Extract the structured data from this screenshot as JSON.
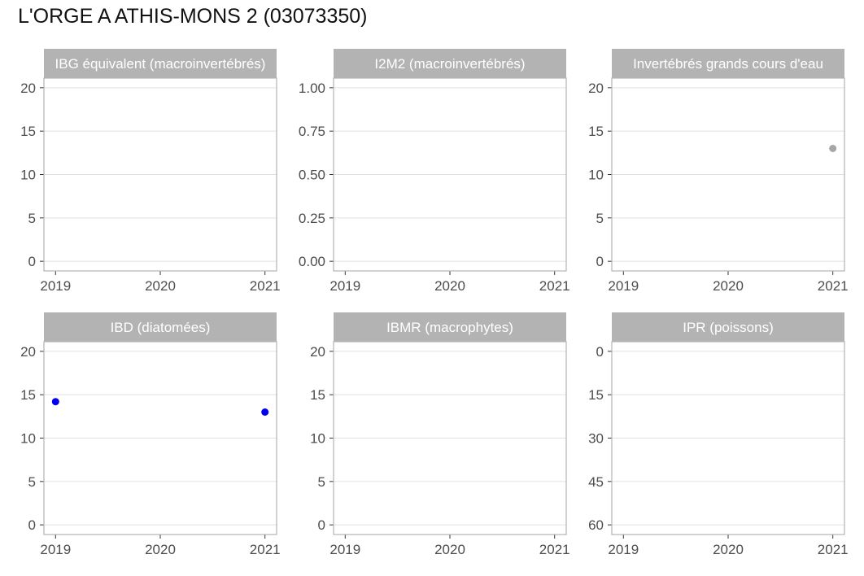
{
  "title": "L'ORGE A ATHIS-MONS 2 (03073350)",
  "colors": {
    "strip_bg": "#b3b3b3",
    "panel_border": "#b3b3b3",
    "gridline": "#e0e0e0",
    "point_blue": "#0000ee",
    "point_grey": "#a6a6a6"
  },
  "chart_data": [
    {
      "type": "scatter",
      "title": "IBG équivalent (macroinvertébrés)",
      "x_ticks": [
        2019,
        2020,
        2021
      ],
      "xlim": [
        2019,
        2021
      ],
      "y_ticks": [
        0,
        5,
        10,
        15,
        20
      ],
      "y_tick_labels": [
        "0",
        "5",
        "10",
        "15",
        "20"
      ],
      "ylim": [
        0,
        20
      ],
      "reversed": false,
      "points": []
    },
    {
      "type": "scatter",
      "title": "I2M2 (macroinvertébrés)",
      "x_ticks": [
        2019,
        2020,
        2021
      ],
      "xlim": [
        2019,
        2021
      ],
      "y_ticks": [
        0,
        0.25,
        0.5,
        0.75,
        1
      ],
      "y_tick_labels": [
        "0.00",
        "0.25",
        "0.50",
        "0.75",
        "1.00"
      ],
      "ylim": [
        0,
        1
      ],
      "reversed": false,
      "points": []
    },
    {
      "type": "scatter",
      "title": "Invertébrés grands cours d'eau",
      "x_ticks": [
        2019,
        2020,
        2021
      ],
      "xlim": [
        2019,
        2021
      ],
      "y_ticks": [
        0,
        5,
        10,
        15,
        20
      ],
      "y_tick_labels": [
        "0",
        "5",
        "10",
        "15",
        "20"
      ],
      "ylim": [
        0,
        20
      ],
      "reversed": false,
      "points": [
        {
          "x": 2021,
          "y": 13,
          "color": "#a6a6a6"
        }
      ]
    },
    {
      "type": "scatter",
      "title": "IBD (diatomées)",
      "x_ticks": [
        2019,
        2020,
        2021
      ],
      "xlim": [
        2019,
        2021
      ],
      "y_ticks": [
        0,
        5,
        10,
        15,
        20
      ],
      "y_tick_labels": [
        "0",
        "5",
        "10",
        "15",
        "20"
      ],
      "ylim": [
        0,
        20
      ],
      "reversed": false,
      "points": [
        {
          "x": 2019,
          "y": 14.2,
          "color": "#0000ee"
        },
        {
          "x": 2021,
          "y": 13,
          "color": "#0000ee"
        }
      ]
    },
    {
      "type": "scatter",
      "title": "IBMR (macrophytes)",
      "x_ticks": [
        2019,
        2020,
        2021
      ],
      "xlim": [
        2019,
        2021
      ],
      "y_ticks": [
        0,
        5,
        10,
        15,
        20
      ],
      "y_tick_labels": [
        "0",
        "5",
        "10",
        "15",
        "20"
      ],
      "ylim": [
        0,
        20
      ],
      "reversed": false,
      "points": []
    },
    {
      "type": "scatter",
      "title": "IPR (poissons)",
      "x_ticks": [
        2019,
        2020,
        2021
      ],
      "xlim": [
        2019,
        2021
      ],
      "y_ticks": [
        0,
        15,
        30,
        45,
        60
      ],
      "y_tick_labels": [
        "0",
        "15",
        "30",
        "45",
        "60"
      ],
      "ylim": [
        0,
        60
      ],
      "reversed": true,
      "points": []
    }
  ]
}
